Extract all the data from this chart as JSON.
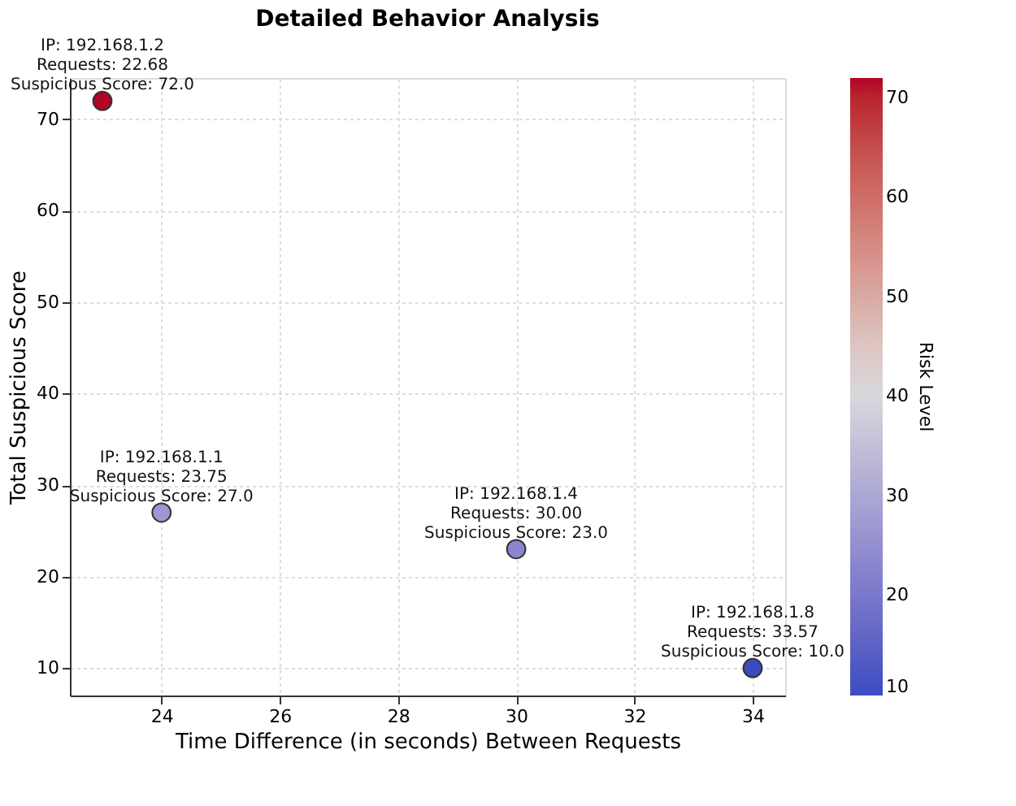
{
  "chart_data": {
    "type": "scatter",
    "title": "Detailed Behavior Analysis",
    "xlabel": "Time Difference (in seconds) Between Requests",
    "ylabel": "Total Suspicious Score",
    "clabel": "Risk Level",
    "x": [
      23,
      24,
      30,
      34
    ],
    "values": [
      72,
      27,
      23,
      10
    ],
    "cvalues": [
      72,
      27,
      23,
      10
    ],
    "clim": [
      10,
      72
    ],
    "cticks": [
      10,
      20,
      30,
      40,
      50,
      60,
      70
    ],
    "xlim": [
      22.45,
      34.55
    ],
    "xticks": [
      24,
      26,
      28,
      30,
      32,
      34
    ],
    "ylim": [
      7,
      74.5
    ],
    "yticks": [
      10,
      20,
      30,
      40,
      50,
      60,
      70
    ],
    "grid": true,
    "marker": "circle",
    "annotations": [
      {
        "text": "IP: 192.168.1.2\nRequests: 22.68\nSuspicious Score: 72.0",
        "x": 23,
        "y": 72
      },
      {
        "text": "IP: 192.168.1.1\nRequests: 23.75\nSuspicious Score: 27.0",
        "x": 24,
        "y": 27
      },
      {
        "text": "IP: 192.168.1.4\nRequests: 30.00\nSuspicious Score: 23.0",
        "x": 30,
        "y": 23
      },
      {
        "text": "IP: 192.168.1.8\nRequests: 33.57\nSuspicious Score: 10.0",
        "x": 34,
        "y": 10
      }
    ]
  }
}
